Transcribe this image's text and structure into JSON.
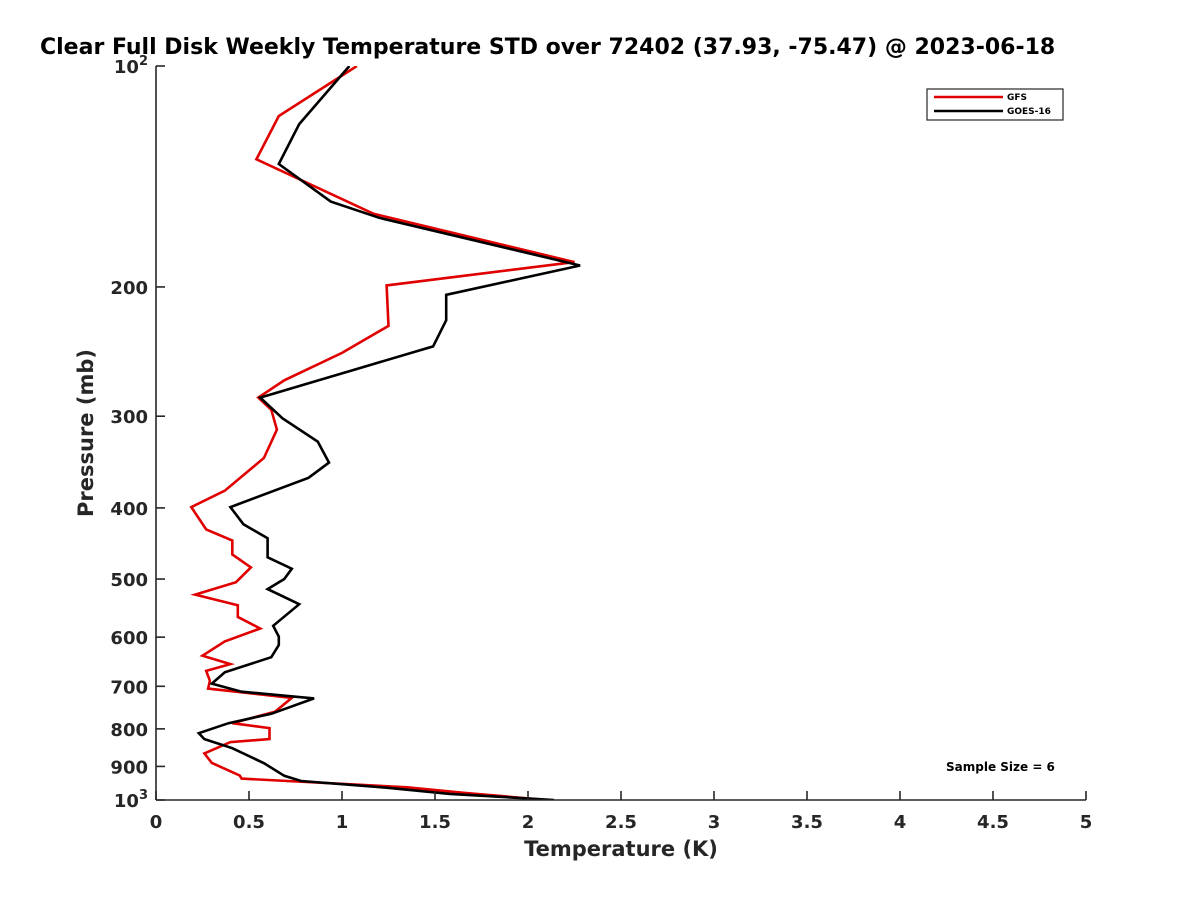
{
  "chart_data": {
    "type": "line",
    "title": "Clear Full Disk Weekly Temperature STD over 72402 (37.93, -75.47) @ 2023-06-18",
    "xlabel": "Temperature (K)",
    "ylabel": "Pressure (mb)",
    "xlim": [
      0,
      5
    ],
    "ylim": [
      100,
      1000
    ],
    "yscale": "log",
    "y_reversed": true,
    "x_ticks": [
      {
        "value": 0,
        "label": "0"
      },
      {
        "value": 0.5,
        "label": "0.5"
      },
      {
        "value": 1,
        "label": "1"
      },
      {
        "value": 1.5,
        "label": "1.5"
      },
      {
        "value": 2,
        "label": "2"
      },
      {
        "value": 2.5,
        "label": "2.5"
      },
      {
        "value": 3,
        "label": "3"
      },
      {
        "value": 3.5,
        "label": "3.5"
      },
      {
        "value": 4,
        "label": "4"
      },
      {
        "value": 4.5,
        "label": "4.5"
      },
      {
        "value": 5,
        "label": "5"
      }
    ],
    "y_ticks": [
      {
        "value": 100,
        "label": "10",
        "sup": "2"
      },
      {
        "value": 200,
        "label": "200",
        "sup": ""
      },
      {
        "value": 300,
        "label": "300",
        "sup": ""
      },
      {
        "value": 400,
        "label": "400",
        "sup": ""
      },
      {
        "value": 500,
        "label": "500",
        "sup": ""
      },
      {
        "value": 600,
        "label": "600",
        "sup": ""
      },
      {
        "value": 700,
        "label": "700",
        "sup": ""
      },
      {
        "value": 800,
        "label": "800",
        "sup": ""
      },
      {
        "value": 900,
        "label": "900",
        "sup": ""
      },
      {
        "value": 1000,
        "label": "10",
        "sup": "3"
      }
    ],
    "grid": false,
    "legend_position": "top-right",
    "annotation": "Sample Size = 6",
    "series": [
      {
        "name": "GFS",
        "color": "#e00000",
        "points": [
          [
            1.08,
            100
          ],
          [
            0.66,
            117
          ],
          [
            0.54,
            134
          ],
          [
            1.17,
            159
          ],
          [
            2.25,
            185
          ],
          [
            1.24,
            199
          ],
          [
            1.25,
            226
          ],
          [
            1.0,
            246
          ],
          [
            0.69,
            268
          ],
          [
            0.55,
            283
          ],
          [
            0.62,
            294
          ],
          [
            0.65,
            313
          ],
          [
            0.58,
            342
          ],
          [
            0.37,
            379
          ],
          [
            0.19,
            399
          ],
          [
            0.27,
            428
          ],
          [
            0.41,
            443
          ],
          [
            0.41,
            463
          ],
          [
            0.51,
            482
          ],
          [
            0.43,
            505
          ],
          [
            0.21,
            525
          ],
          [
            0.44,
            543
          ],
          [
            0.44,
            563
          ],
          [
            0.56,
            584
          ],
          [
            0.37,
            608
          ],
          [
            0.25,
            636
          ],
          [
            0.4,
            653
          ],
          [
            0.27,
            667
          ],
          [
            0.29,
            688
          ],
          [
            0.28,
            705
          ],
          [
            0.73,
            726
          ],
          [
            0.64,
            758
          ],
          [
            0.41,
            786
          ],
          [
            0.61,
            798
          ],
          [
            0.61,
            826
          ],
          [
            0.4,
            834
          ],
          [
            0.26,
            864
          ],
          [
            0.3,
            890
          ],
          [
            0.45,
            926
          ],
          [
            0.46,
            935
          ],
          [
            1.35,
            961
          ],
          [
            1.66,
            978
          ],
          [
            2.1,
            1000
          ]
        ]
      },
      {
        "name": "GOES-16",
        "color": "#000000",
        "points": [
          [
            1.04,
            100
          ],
          [
            0.77,
            120
          ],
          [
            0.66,
            136
          ],
          [
            0.94,
            153
          ],
          [
            1.2,
            161
          ],
          [
            2.28,
            187
          ],
          [
            1.56,
            205
          ],
          [
            1.56,
            222
          ],
          [
            1.49,
            241
          ],
          [
            1.05,
            260
          ],
          [
            0.56,
            283
          ],
          [
            0.68,
            302
          ],
          [
            0.87,
            325
          ],
          [
            0.93,
            347
          ],
          [
            0.82,
            364
          ],
          [
            0.4,
            399
          ],
          [
            0.47,
            421
          ],
          [
            0.6,
            440
          ],
          [
            0.6,
            467
          ],
          [
            0.73,
            484
          ],
          [
            0.69,
            500
          ],
          [
            0.6,
            516
          ],
          [
            0.77,
            541
          ],
          [
            0.63,
            579
          ],
          [
            0.66,
            599
          ],
          [
            0.66,
            615
          ],
          [
            0.62,
            639
          ],
          [
            0.37,
            670
          ],
          [
            0.3,
            694
          ],
          [
            0.46,
            712
          ],
          [
            0.85,
            727
          ],
          [
            0.62,
            763
          ],
          [
            0.39,
            786
          ],
          [
            0.23,
            811
          ],
          [
            0.26,
            826
          ],
          [
            0.41,
            850
          ],
          [
            0.58,
            891
          ],
          [
            0.69,
            927
          ],
          [
            0.78,
            942
          ],
          [
            1.24,
            962
          ],
          [
            1.58,
            981
          ],
          [
            2.14,
            1000
          ]
        ]
      }
    ]
  }
}
